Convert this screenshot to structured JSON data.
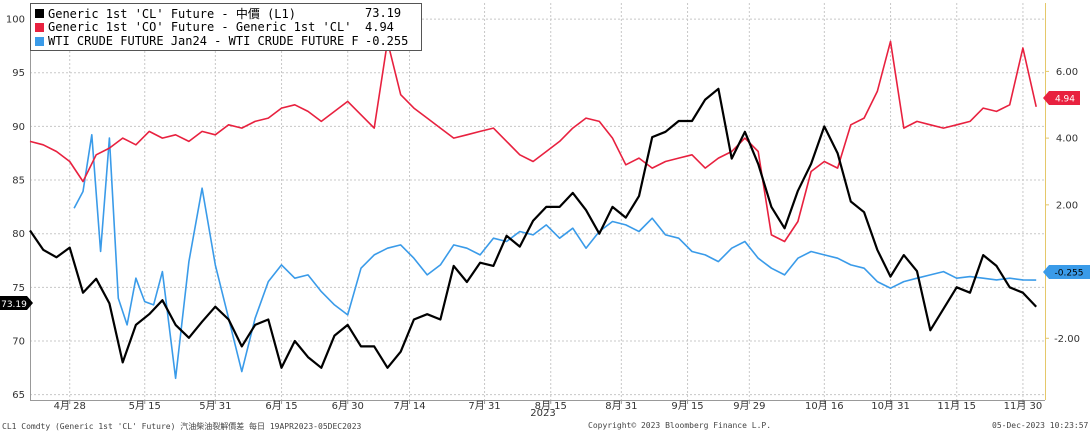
{
  "legend": [
    {
      "name": "Generic 1st 'CL' Future - 中價 (L1)",
      "value": "73.19",
      "color": "#000000"
    },
    {
      "name": "Generic 1st 'CO' Future - Generic 1st 'CL' Future (R1)",
      "value": "4.94",
      "color": "#e8213f"
    },
    {
      "name": "WTI CRUDE FUTURE Jan24 - WTI CRUDE FUTURE Feb24 (R1)",
      "value": "-0.255",
      "color": "#3a9be9"
    }
  ],
  "markers": {
    "left": "73.19",
    "right_red": "4.94",
    "right_blue": "-0.255"
  },
  "footer": {
    "left": "CL1 Comdty (Generic 1st 'CL' Future) 汽油柴油裂解價差  每日 19APR2023-05DEC2023",
    "center": "Copyright© 2023 Bloomberg Finance L.P.",
    "right": "05-Dec-2023 10:23:57"
  },
  "chart_data": {
    "type": "line",
    "x_axis": {
      "tick_labels": [
        "4月 28",
        "5月 15",
        "5月 31",
        "6月 15",
        "6月 30",
        "7月 14",
        "7月 31",
        "8月 15",
        "8月 31",
        "9月 15",
        "9月 29",
        "10月 16",
        "10月 31",
        "11月 15",
        "11月 30"
      ],
      "year_label": "2023",
      "range": [
        "2023-04-19",
        "2023-12-05"
      ]
    },
    "left_axis": {
      "ticks": [
        65,
        70,
        75,
        80,
        85,
        90,
        95,
        100
      ],
      "range": [
        64.5,
        101.5
      ]
    },
    "right_axis": {
      "ticks": [
        "-2.00",
        "0.00",
        "2.00",
        "4.00",
        "6.00"
      ],
      "range": [
        -3.85,
        8.05
      ]
    },
    "grid": true,
    "legend_position": "top-left",
    "series": [
      {
        "name": "Generic 1st 'CL' Future - 中價 (L1)",
        "axis": "left",
        "color": "#000000",
        "x": [
          0,
          3,
          6,
          9,
          12,
          15,
          18,
          21,
          24,
          27,
          30,
          33,
          36,
          39,
          42,
          45,
          48,
          51,
          54,
          57,
          60,
          63,
          66,
          69,
          72,
          75,
          78,
          81,
          84,
          87,
          90,
          93,
          96,
          99,
          102,
          105,
          108,
          111,
          114,
          117,
          120,
          123,
          126,
          129,
          132,
          135,
          138,
          141,
          144,
          147,
          150,
          153,
          156,
          159,
          162,
          165,
          168,
          171,
          174,
          177,
          180,
          183,
          186,
          189,
          192,
          195,
          198,
          201,
          204,
          207,
          210,
          213,
          216,
          219,
          222,
          225,
          228
        ],
        "values": [
          80.3,
          78.5,
          77.8,
          78.7,
          74.5,
          75.8,
          73.5,
          68,
          71.5,
          72.5,
          73.8,
          71.5,
          70.3,
          71.8,
          73.2,
          72,
          69.5,
          71.5,
          72,
          67.5,
          70,
          68.5,
          67.5,
          70.5,
          71.5,
          69.5,
          69.5,
          67.5,
          69,
          72,
          72.5,
          72,
          77,
          75.5,
          77.3,
          77,
          79.8,
          78.8,
          81.2,
          82.5,
          82.5,
          83.8,
          82.2,
          80,
          82.5,
          81.5,
          83.5,
          89,
          89.5,
          90.5,
          90.5,
          92.5,
          93.5,
          87,
          89.5,
          86.5,
          82.5,
          80.5,
          84,
          86.5,
          90,
          87.5,
          83,
          82,
          78.5,
          76,
          78,
          76.5,
          71,
          73,
          75,
          74.5,
          78,
          77,
          75,
          74.5,
          73.19
        ]
      },
      {
        "name": "Generic 1st 'CO' Future - Generic 1st 'CL' Future (R1)",
        "axis": "right",
        "color": "#e8213f",
        "x": [
          0,
          3,
          6,
          9,
          12,
          15,
          18,
          21,
          24,
          27,
          30,
          33,
          36,
          39,
          42,
          45,
          48,
          51,
          54,
          57,
          60,
          63,
          66,
          69,
          72,
          75,
          78,
          81,
          84,
          87,
          90,
          93,
          96,
          99,
          102,
          105,
          108,
          111,
          114,
          117,
          120,
          123,
          126,
          129,
          132,
          135,
          138,
          141,
          144,
          147,
          150,
          153,
          156,
          159,
          162,
          165,
          168,
          171,
          174,
          177,
          180,
          183,
          186,
          189,
          192,
          195,
          198,
          201,
          204,
          207,
          210,
          213,
          216,
          219,
          222,
          225,
          228
        ],
        "values": [
          3.9,
          3.8,
          3.6,
          3.3,
          2.7,
          3.5,
          3.7,
          4.0,
          3.8,
          4.2,
          4.0,
          4.1,
          3.9,
          4.2,
          4.1,
          4.4,
          4.3,
          4.5,
          4.6,
          4.9,
          5.0,
          4.8,
          4.5,
          4.8,
          5.1,
          4.7,
          4.3,
          6.9,
          5.3,
          4.9,
          4.6,
          4.3,
          4.0,
          4.1,
          4.2,
          4.3,
          3.9,
          3.5,
          3.3,
          3.6,
          3.9,
          4.3,
          4.6,
          4.5,
          4.0,
          3.2,
          3.4,
          3.1,
          3.3,
          3.4,
          3.5,
          3.1,
          3.4,
          3.6,
          4.0,
          3.6,
          1.1,
          0.9,
          1.5,
          3.0,
          3.3,
          3.1,
          4.4,
          4.6,
          5.4,
          6.9,
          4.3,
          4.5,
          4.4,
          4.3,
          4.4,
          4.5,
          4.9,
          4.8,
          5.0,
          6.7,
          4.94
        ]
      },
      {
        "name": "WTI CRUDE FUTURE Jan24 - WTI CRUDE FUTURE Feb24 (R1)",
        "axis": "right",
        "color": "#3a9be9",
        "x": [
          10,
          12,
          14,
          16,
          18,
          20,
          22,
          24,
          26,
          28,
          30,
          33,
          36,
          39,
          42,
          45,
          48,
          51,
          54,
          57,
          60,
          63,
          66,
          69,
          72,
          75,
          78,
          81,
          84,
          87,
          90,
          93,
          96,
          99,
          102,
          105,
          108,
          111,
          114,
          117,
          120,
          123,
          126,
          129,
          132,
          135,
          138,
          141,
          144,
          147,
          150,
          153,
          156,
          159,
          162,
          165,
          168,
          171,
          174,
          177,
          180,
          183,
          186,
          189,
          192,
          195,
          198,
          201,
          204,
          207,
          210,
          213,
          216,
          219,
          222,
          225,
          228
        ],
        "values": [
          1.9,
          2.4,
          4.1,
          0.6,
          4.0,
          -0.8,
          -1.6,
          -0.2,
          -0.9,
          -1.0,
          0.0,
          -3.2,
          0.3,
          2.5,
          0.2,
          -1.4,
          -3.0,
          -1.4,
          -0.3,
          0.2,
          -0.2,
          -0.1,
          -0.6,
          -1.0,
          -1.3,
          0.1,
          0.5,
          0.7,
          0.8,
          0.4,
          -0.1,
          0.2,
          0.8,
          0.7,
          0.5,
          1.0,
          0.9,
          1.2,
          1.1,
          1.4,
          1.0,
          1.3,
          0.7,
          1.2,
          1.5,
          1.4,
          1.2,
          1.6,
          1.1,
          1.0,
          0.6,
          0.5,
          0.3,
          0.7,
          0.9,
          0.4,
          0.1,
          -0.1,
          0.4,
          0.6,
          0.5,
          0.4,
          0.2,
          0.1,
          -0.3,
          -0.5,
          -0.3,
          -0.2,
          -0.1,
          0.0,
          -0.2,
          -0.15,
          -0.2,
          -0.25,
          -0.2,
          -0.25,
          -0.255
        ]
      }
    ]
  }
}
